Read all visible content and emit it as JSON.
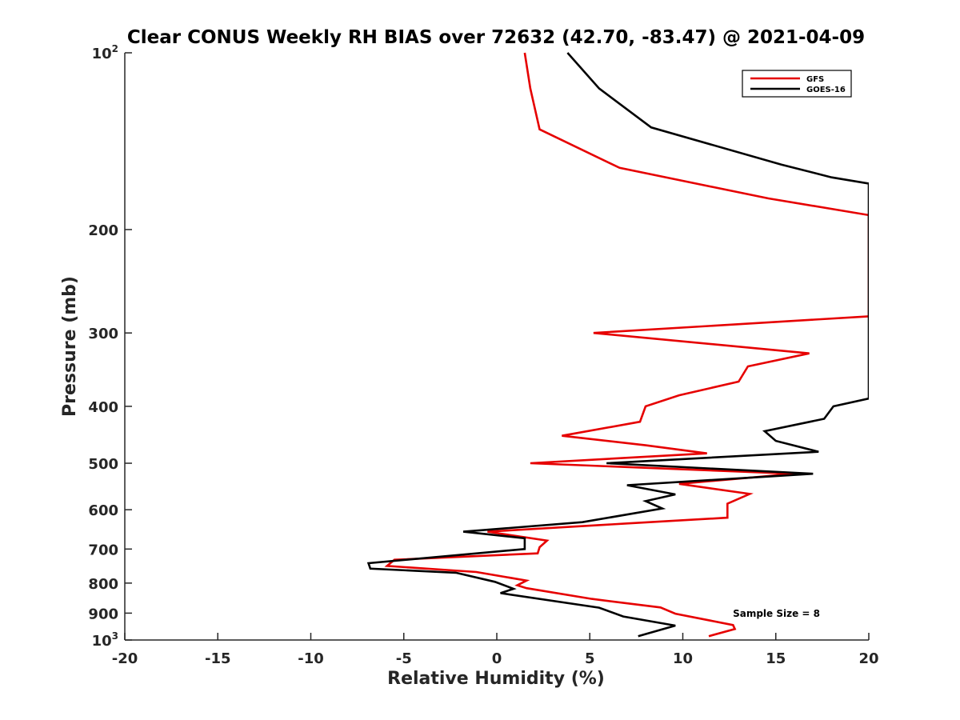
{
  "chart_data": {
    "type": "line",
    "title": "Clear CONUS Weekly RH BIAS over 72632 (42.70, -83.47) @ 2021-04-09",
    "xlabel": "Relative Humidity (%)",
    "ylabel": "Pressure (mb)",
    "xlim": [
      -20,
      20
    ],
    "ylim": [
      100,
      1000
    ],
    "y_scale": "log",
    "y_reversed": true,
    "x_ticks": [
      "-20",
      "-15",
      "-10",
      "-5",
      "0",
      "5",
      "10",
      "15",
      "20"
    ],
    "y_ticks": [
      {
        "value": 100,
        "base": "10",
        "exp": "2"
      },
      {
        "value": 200,
        "base": "200",
        "exp": ""
      },
      {
        "value": 300,
        "base": "300",
        "exp": ""
      },
      {
        "value": 400,
        "base": "400",
        "exp": ""
      },
      {
        "value": 500,
        "base": "500",
        "exp": ""
      },
      {
        "value": 600,
        "base": "600",
        "exp": ""
      },
      {
        "value": 700,
        "base": "700",
        "exp": ""
      },
      {
        "value": 800,
        "base": "800",
        "exp": ""
      },
      {
        "value": 900,
        "base": "900",
        "exp": ""
      },
      {
        "value": 1000,
        "base": "10",
        "exp": "3"
      }
    ],
    "grid": false,
    "legend_position": "top-right",
    "annotation": "Sample Size = 8",
    "series": [
      {
        "name": "GFS",
        "color": "#e60000",
        "points": [
          [
            1.5,
            100
          ],
          [
            1.8,
            115
          ],
          [
            2.3,
            135
          ],
          [
            6.6,
            157
          ],
          [
            14.6,
            177
          ],
          [
            20.0,
            189
          ],
          [
            20.0,
            281
          ],
          [
            5.2,
            300
          ],
          [
            16.8,
            325
          ],
          [
            13.5,
            342
          ],
          [
            13.0,
            363
          ],
          [
            9.8,
            383
          ],
          [
            8.0,
            400
          ],
          [
            7.7,
            425
          ],
          [
            3.5,
            449
          ],
          [
            8.0,
            466
          ],
          [
            11.3,
            481
          ],
          [
            1.8,
            500
          ],
          [
            16.0,
            521
          ],
          [
            9.8,
            542
          ],
          [
            13.6,
            564
          ],
          [
            12.4,
            586
          ],
          [
            12.4,
            619
          ],
          [
            7.1,
            633
          ],
          [
            -0.5,
            654
          ],
          [
            2.7,
            677
          ],
          [
            2.3,
            695
          ],
          [
            2.2,
            712
          ],
          [
            -5.5,
            730
          ],
          [
            -5.9,
            748
          ],
          [
            -1.1,
            766
          ],
          [
            1.6,
            792
          ],
          [
            1.1,
            807
          ],
          [
            1.6,
            816
          ],
          [
            5.1,
            851
          ],
          [
            8.8,
            880
          ],
          [
            9.6,
            902
          ],
          [
            12.7,
            943
          ],
          [
            12.8,
            958
          ],
          [
            11.4,
            985
          ]
        ]
      },
      {
        "name": "GOES-16",
        "color": "#000000",
        "points": [
          [
            3.8,
            100
          ],
          [
            5.5,
            115
          ],
          [
            8.3,
            134
          ],
          [
            15.3,
            155
          ],
          [
            18.0,
            163
          ],
          [
            20.0,
            167
          ],
          [
            20.0,
            388
          ],
          [
            18.1,
            400
          ],
          [
            17.6,
            420
          ],
          [
            14.4,
            441
          ],
          [
            15.0,
            458
          ],
          [
            17.3,
            478
          ],
          [
            5.9,
            500
          ],
          [
            17.0,
            521
          ],
          [
            7.0,
            545
          ],
          [
            9.6,
            565
          ],
          [
            8.0,
            580
          ],
          [
            8.9,
            597
          ],
          [
            4.6,
            630
          ],
          [
            -1.8,
            654
          ],
          [
            1.5,
            671
          ],
          [
            1.5,
            700
          ],
          [
            -6.9,
            740
          ],
          [
            -6.8,
            756
          ],
          [
            -2.2,
            768
          ],
          [
            -0.1,
            796
          ],
          [
            0.9,
            818
          ],
          [
            0.2,
            832
          ],
          [
            5.5,
            881
          ],
          [
            6.8,
            912
          ],
          [
            9.6,
            945
          ],
          [
            7.6,
            985
          ]
        ]
      }
    ]
  }
}
